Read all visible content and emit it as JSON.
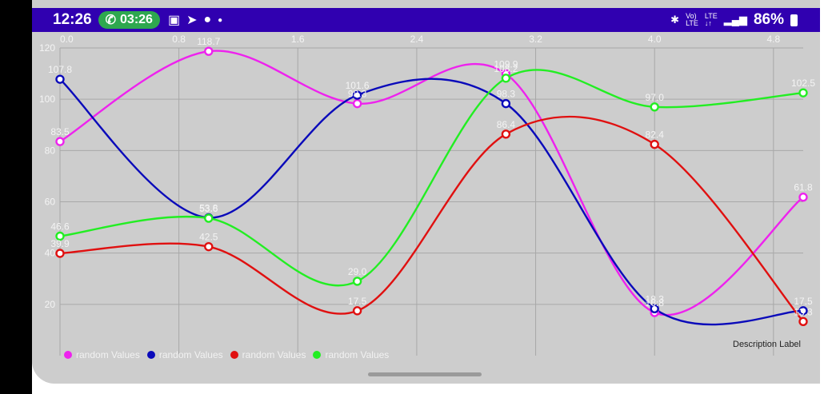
{
  "status": {
    "time": "12:26",
    "call_timer": "03:26",
    "battery": "86%",
    "icons": [
      "gallery-icon",
      "telegram-icon",
      "messenger-icon",
      "dot-icon",
      "bluetooth-icon",
      "volte-icon",
      "lte-icon",
      "signal-icon",
      "battery-icon"
    ]
  },
  "chart_data": {
    "type": "line",
    "curve": "smooth",
    "x": [
      0,
      1,
      2,
      3,
      4,
      5
    ],
    "xlim": [
      0,
      5
    ],
    "x_ticks": [
      "0.0",
      "0.8",
      "1.6",
      "2.4",
      "3.2",
      "4.0",
      "4.8"
    ],
    "x_tick_values": [
      0,
      0.8,
      1.6,
      2.4,
      3.2,
      4.0,
      4.8
    ],
    "x_axis_position": "top",
    "ylim": [
      0,
      120
    ],
    "y_ticks": [
      "20",
      "40",
      "60",
      "80",
      "100",
      "120"
    ],
    "y_tick_values": [
      20,
      40,
      60,
      80,
      100,
      120
    ],
    "grid": true,
    "background": "#cdcdcd",
    "description": "Description Label",
    "legend_position": "bottom-left",
    "series": [
      {
        "name": "random Values",
        "color": "#ee22ee",
        "values": [
          83.5,
          118.7,
          98.3,
          109.9,
          16.8,
          61.8
        ]
      },
      {
        "name": "random Values",
        "color": "#0a0aba",
        "values": [
          107.8,
          53.8,
          101.6,
          98.3,
          18.3,
          17.5
        ]
      },
      {
        "name": "random Values",
        "color": "#e01010",
        "values": [
          39.9,
          42.5,
          17.5,
          86.4,
          82.4,
          13.3
        ]
      },
      {
        "name": "random Values",
        "color": "#22ee22",
        "values": [
          46.6,
          53.6,
          29.0,
          108.2,
          97.0,
          102.5
        ]
      }
    ]
  }
}
